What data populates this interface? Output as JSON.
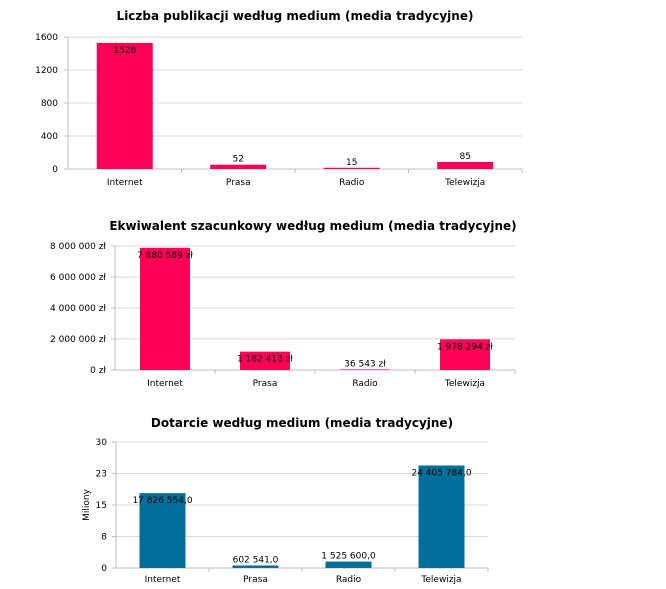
{
  "colors": {
    "pink": "#ff0055",
    "teal": "#00709a"
  },
  "chart_data": [
    {
      "type": "bar",
      "title": "Liczba publikacji według medium (media tradycyjne)",
      "categories": [
        "Internet",
        "Prasa",
        "Radio",
        "Telewizja"
      ],
      "values": [
        1528,
        52,
        15,
        85
      ],
      "value_labels": [
        "1528",
        "52",
        "15",
        "85"
      ],
      "ylim": [
        0,
        1600
      ],
      "yticks": [
        0,
        400,
        800,
        1200,
        1600
      ],
      "ytick_labels": [
        "0",
        "400",
        "800",
        "1200",
        "1600"
      ],
      "xlabel": "",
      "ylabel": "",
      "grid": true
    },
    {
      "type": "bar",
      "title": "Ekwiwalent szacunkowy według medium (media tradycyjne)",
      "categories": [
        "Internet",
        "Prasa",
        "Radio",
        "Telewizja"
      ],
      "values": [
        7880589,
        1182413,
        36543,
        1978294
      ],
      "value_labels": [
        "7 880 589 zł",
        "1 182 413 zł",
        "36 543 zł",
        "1 978 294 zł"
      ],
      "ylim": [
        0,
        8000000
      ],
      "yticks": [
        0,
        2000000,
        4000000,
        6000000,
        8000000
      ],
      "ytick_labels": [
        "0 zł",
        "2 000 000 zł",
        "4 000 000 zł",
        "6 000 000 zł",
        "8 000 000 zł"
      ],
      "xlabel": "",
      "ylabel": "",
      "grid": true
    },
    {
      "type": "bar",
      "title": "Dotarcie według medium (media  tradycyjne)",
      "categories": [
        "Internet",
        "Prasa",
        "Radio",
        "Telewizja"
      ],
      "values": [
        17826554,
        602541,
        1525600,
        24405784
      ],
      "value_labels": [
        "17 826 554,0",
        "602 541,0",
        "1 525 600,0",
        "24 405 784,0"
      ],
      "ylim": [
        0,
        30
      ],
      "yticks": [
        0,
        7.5,
        15,
        22.5,
        30
      ],
      "ytick_labels": [
        "0",
        "8",
        "15",
        "23",
        "30"
      ],
      "xlabel": "",
      "ylabel": "Miliony",
      "grid": true
    }
  ]
}
